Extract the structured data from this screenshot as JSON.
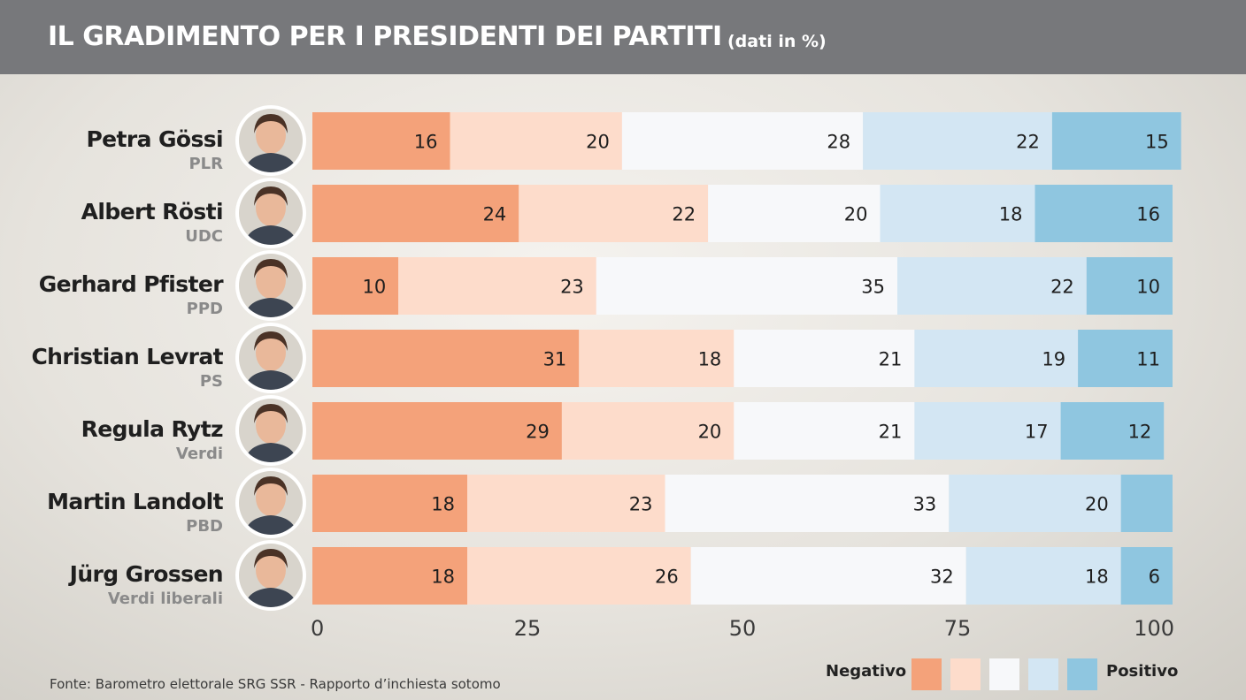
{
  "header": {
    "title": "IL GRADIMENTO PER I PRESIDENTI DEI PARTITI",
    "subtitle": "(dati in %)"
  },
  "colors": {
    "header_bg": "#77787b",
    "segments": [
      "#f4a27a",
      "#fddccb",
      "#f7f8fa",
      "#d3e6f3",
      "#8fc6e0"
    ]
  },
  "chart_data": {
    "type": "bar",
    "orientation": "horizontal",
    "stacked": true,
    "title": "IL GRADIMENTO PER I PRESIDENTI DEI PARTITI",
    "subtitle": "(dati in %)",
    "categories": [
      {
        "name": "Petra Gössi",
        "party": "PLR"
      },
      {
        "name": "Albert Rösti",
        "party": "UDC"
      },
      {
        "name": "Gerhard Pfister",
        "party": "PPD"
      },
      {
        "name": "Christian Levrat",
        "party": "PS"
      },
      {
        "name": "Regula Rytz",
        "party": "Verdi"
      },
      {
        "name": "Martin Landolt",
        "party": "PBD"
      },
      {
        "name": "Jürg Grossen",
        "party": "Verdi liberali"
      }
    ],
    "rows": [
      [
        16,
        20,
        28,
        22,
        15
      ],
      [
        24,
        22,
        20,
        18,
        16
      ],
      [
        10,
        23,
        35,
        22,
        10
      ],
      [
        31,
        18,
        21,
        19,
        11
      ],
      [
        29,
        20,
        21,
        17,
        12
      ],
      [
        18,
        23,
        33,
        20,
        6
      ],
      [
        18,
        26,
        32,
        18,
        6
      ]
    ],
    "labels": [
      [
        "16",
        "20",
        "28",
        "22",
        "15"
      ],
      [
        "24",
        "22",
        "20",
        "18",
        "16"
      ],
      [
        "10",
        "23",
        "35",
        "22",
        "10"
      ],
      [
        "31",
        "18",
        "21",
        "19",
        "11"
      ],
      [
        "29",
        "20",
        "21",
        "17",
        "12"
      ],
      [
        "18",
        "23",
        "33",
        "20",
        ""
      ],
      [
        "18",
        "26",
        "32",
        "18",
        "6"
      ]
    ],
    "xlim": [
      0,
      100
    ],
    "xticks": [
      "0",
      "25",
      "50",
      "75",
      "100"
    ],
    "legend": {
      "left_label": "Negativo",
      "right_label": "Positivo",
      "placement": "bottom-right"
    }
  },
  "footer": {
    "source": "Fonte: Barometro elettorale SRG SSR - Rapporto d’inchiesta sotomo"
  }
}
